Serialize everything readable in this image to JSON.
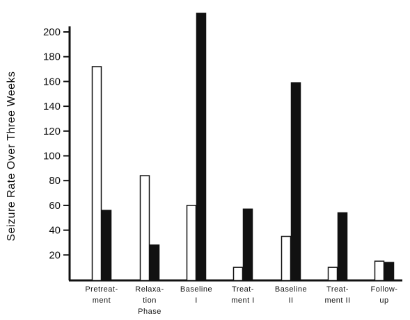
{
  "chart_data": {
    "type": "bar",
    "ylabel": "Seizure Rate Over Three Weeks",
    "xlabel": "",
    "ylim": [
      0,
      210
    ],
    "yticks": [
      20,
      40,
      60,
      80,
      100,
      120,
      140,
      160,
      180,
      200
    ],
    "categories": [
      [
        "Pretreat-",
        "ment"
      ],
      [
        "Relaxa-",
        "tion",
        "Phase"
      ],
      [
        "Baseline",
        "I"
      ],
      [
        "Treat-",
        "ment I"
      ],
      [
        "Baseline",
        "II"
      ],
      [
        "Treat-",
        "ment II"
      ],
      [
        "Follow-",
        "up"
      ]
    ],
    "series": [
      {
        "values": [
          172,
          84,
          60,
          10,
          35,
          10,
          15
        ],
        "color": "#ffffff"
      },
      {
        "values": [
          56,
          28,
          215,
          57,
          159,
          54,
          14
        ],
        "color": "#111111"
      }
    ],
    "grid": false,
    "legend": "none"
  }
}
